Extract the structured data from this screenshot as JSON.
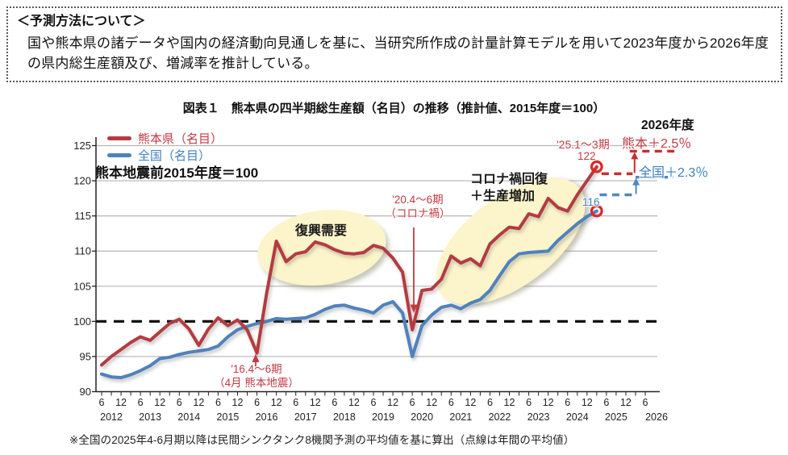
{
  "method_box": {
    "title": "＜予測方法について＞",
    "body": "国や熊本県の諸データや国内の経済動向見通しを基に、当研究所作成の計量計算モデルを用いて2023年度から2026年度の県内総生産額及び、増減率を推計している。"
  },
  "chart": {
    "title": "図表１　熊本県の四半期総生産額（名目）の推移（推計値、2015年度＝100）",
    "footnote": "※全国の2025年4-6月期以降は民間シンクタンク8機関予測の平均値を基に算出（点線は年間の平均値）",
    "legend": {
      "series1": "熊本県（名目）",
      "series2": "全国（名目）",
      "base_note": "熊本地震前2015年度＝100"
    },
    "annotations": {
      "recovery": "復興需要",
      "corona_recovery_line1": "コロナ禍回復",
      "corona_recovery_line2": "＋生産増加",
      "covid_line1": "'20.4～6期",
      "covid_line2": "（コロナ禍）",
      "quake_line1": "'16.4～6期",
      "quake_line2": "（4月 熊本地震）",
      "latest_quarter": "'25.1～3期",
      "kumamoto_end_value": "122",
      "national_end_value": "116",
      "fy2026": "2026年度",
      "kumamoto_growth": "熊本＋2.5％",
      "national_growth": "全国＋2.3％"
    }
  },
  "colors": {
    "kumamoto": "#b43b41",
    "national": "#4f81bd",
    "red_text": "#c13a43",
    "blue_text": "#3c80c3",
    "ring": "#e02626",
    "highlight": "#fcf5cb",
    "grid": "#b5b5b5",
    "axis": "#222222",
    "baseline": "#111111"
  },
  "chart_data": {
    "type": "line",
    "title": "熊本県の四半期総生産額（名目）の推移（推計値、2015年度＝100）",
    "x_unit": "quarter",
    "x_start": "2012年6月期",
    "x_end_solid": "2025年1～3月期",
    "x_tick_months": [
      6,
      12
    ],
    "years": [
      2012,
      2013,
      2014,
      2015,
      2016,
      2017,
      2018,
      2019,
      2020,
      2021,
      2022,
      2023,
      2024,
      2025,
      2026
    ],
    "y_ticks": [
      90,
      95,
      100,
      105,
      110,
      115,
      120,
      125
    ],
    "ylim": [
      90,
      127
    ],
    "baseline": 100,
    "grid": true,
    "legend_position": "top-left",
    "series": [
      {
        "name": "熊本県（名目）",
        "color": "#b43b41",
        "values": [
          93.8,
          95.0,
          96.0,
          97.0,
          97.8,
          97.3,
          98.5,
          99.7,
          100.3,
          98.9,
          96.6,
          98.9,
          100.5,
          99.4,
          100.2,
          98.8,
          95.5,
          104.0,
          111.4,
          108.5,
          109.6,
          109.9,
          111.3,
          110.9,
          110.2,
          109.7,
          109.6,
          109.8,
          110.8,
          110.4,
          109.0,
          107.0,
          98.8,
          104.4,
          104.6,
          106.0,
          109.3,
          108.3,
          108.9,
          107.9,
          111.0,
          112.3,
          113.4,
          113.2,
          115.3,
          114.9,
          117.5,
          116.2,
          115.7,
          118.0,
          120.0,
          122.0
        ]
      },
      {
        "name": "全国（名目）",
        "color": "#4f81bd",
        "values": [
          92.5,
          92.1,
          92.0,
          92.4,
          93.0,
          93.7,
          94.7,
          94.9,
          95.3,
          95.6,
          95.8,
          96.0,
          96.5,
          97.8,
          98.8,
          99.3,
          99.7,
          100.0,
          100.4,
          100.3,
          100.4,
          100.5,
          101.0,
          101.7,
          102.2,
          102.3,
          101.9,
          101.6,
          101.2,
          102.3,
          102.8,
          101.2,
          95.0,
          99.4,
          100.9,
          102.0,
          102.3,
          101.8,
          102.6,
          103.1,
          104.4,
          106.5,
          108.5,
          109.6,
          109.8,
          109.9,
          110.0,
          111.5,
          112.7,
          113.9,
          114.9,
          115.7
        ]
      }
    ],
    "endpoints": [
      {
        "series": 0,
        "label": "122"
      },
      {
        "series": 1,
        "label": "116"
      }
    ],
    "projections": [
      {
        "name": "熊本県 年間平均（点線）",
        "color": "#c53030",
        "growth_label": "熊本＋2.5％",
        "segments": [
          {
            "q1": 51.5,
            "q2": 54.7,
            "level": 121.0
          },
          {
            "q1": 54.4,
            "q2": 59.0,
            "level": 124.2
          }
        ],
        "arrow": {
          "q": 54.9,
          "from": 121.0,
          "to": 124.1
        }
      },
      {
        "name": "全国 年間平均（点線）",
        "color": "#4f86c6",
        "growth_label": "全国＋2.3％",
        "segments": [
          {
            "q1": 51.3,
            "q2": 54.9,
            "level": 118.0
          },
          {
            "q1": 55.0,
            "q2": 58.9,
            "level": 120.5
          }
        ],
        "arrow": {
          "q": 55.05,
          "from": 118.0,
          "to": 120.4
        }
      }
    ]
  }
}
